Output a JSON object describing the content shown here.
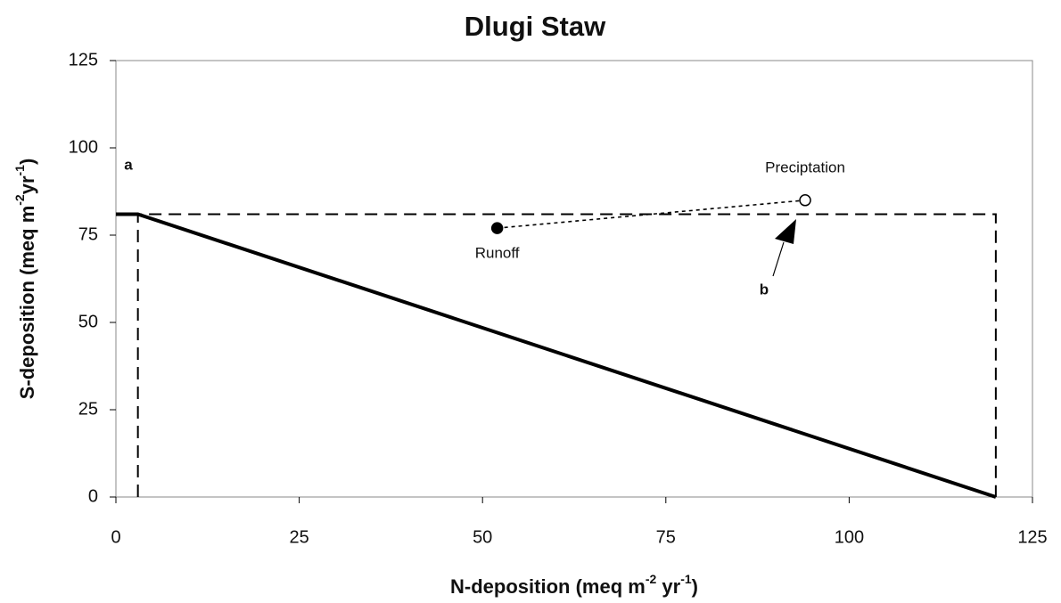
{
  "chart_data": {
    "type": "line",
    "title": "Dlugi Staw",
    "x_label": [
      "N-deposition (meq m",
      "-2",
      " yr",
      "-1",
      ")"
    ],
    "y_label": [
      "S-deposition (meq m",
      "-2",
      "yr",
      "-1",
      ")"
    ],
    "xlim": [
      0,
      125
    ],
    "xticks": [
      0,
      25,
      50,
      75,
      100,
      125
    ],
    "ylim": [
      0,
      125
    ],
    "yticks": [
      0,
      25,
      50,
      75,
      100,
      125
    ],
    "series": [
      {
        "style": "solid",
        "color": "#000000",
        "x": [
          0,
          3,
          120
        ],
        "values": [
          81,
          81,
          0
        ]
      },
      {
        "style": "dashed",
        "color": "#000000",
        "x": [
          3,
          3,
          120,
          120
        ],
        "values": [
          0,
          81,
          81,
          0
        ]
      },
      {
        "style": "dotted",
        "color": "#000000",
        "x": [
          52,
          94
        ],
        "values": [
          77,
          85
        ]
      }
    ],
    "points": [
      {
        "label": "Runoff",
        "x": 52,
        "y": 77,
        "marker": "filled"
      },
      {
        "label": "Preciptation",
        "x": 94,
        "y": 85,
        "marker": "open"
      }
    ],
    "annotations": [
      "a",
      "b"
    ]
  }
}
